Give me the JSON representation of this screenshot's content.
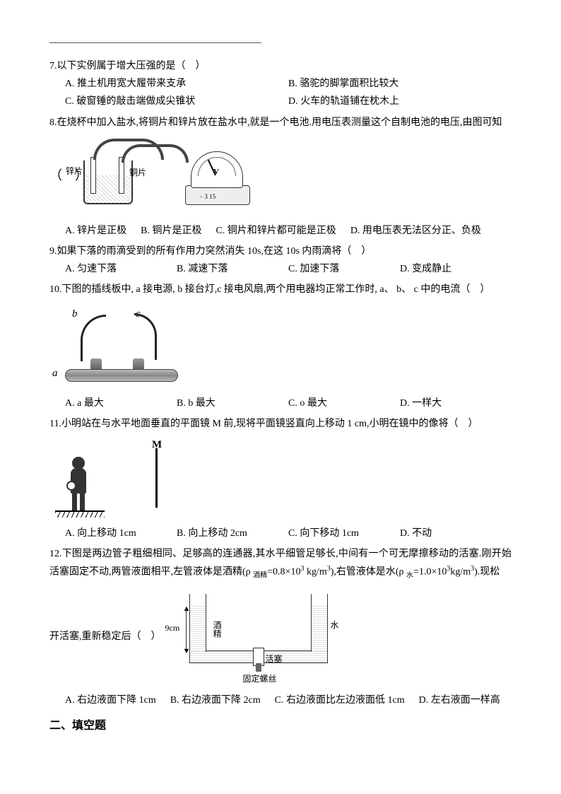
{
  "q7": {
    "text": "7.以下实例属于增大压强的是（　）",
    "optA": "A. 推土机用宽大履带来支承",
    "optB": "B. 骆驼的脚掌面积比较大",
    "optC": "C. 破窗锤的敲击端做成尖锥状",
    "optD": "D. 火车的轨道铺在枕木上"
  },
  "q8": {
    "text": "8.在烧杯中加入盐水,将铜片和锌片放在盐水中,就是一个电池.用电压表测量这个自制电池的电压,由图可知",
    "paren": "（　）",
    "label_zinc": "锌片",
    "label_copper": "铜片",
    "meter_symbol": "V",
    "meter_scale": "− 3 15",
    "optA": "A. 锌片是正极",
    "optB": "B. 铜片是正极",
    "optC": "C. 铜片和锌片都可能是正极",
    "optD": "D. 用电压表无法区分正、负极"
  },
  "q9": {
    "text": "9.如果下落的雨滴受到的所有作用力突然消失 10s,在这 10s 内雨滴将（　）",
    "optA": "A. 匀速下落",
    "optB": "B. 减速下落",
    "optC": "C. 加速下落",
    "optD": "D. 变成静止"
  },
  "q10": {
    "text": "10.下图的插线板中, a 接电源, b 接台灯,c 接电风扇,两个用电器均正常工作时, a、 b、 c 中的电流（　）",
    "label_a": "a",
    "label_b": "b",
    "label_c": "c",
    "optA": "A. a 最大",
    "optB": "B. b 最大",
    "optC": "C. o 最大",
    "optD": "D. 一样大"
  },
  "q11": {
    "text": "11.小明站在与水平地面垂直的平面镜 M 前,现将平面镜竖直向上移动 1 cm,小明在镜中的像将（　）",
    "label_m": "M",
    "optA": "A. 向上移动 1cm",
    "optB": "B. 向上移动 2cm",
    "optC": "C. 向下移动 1cm",
    "optD": "D. 不动"
  },
  "q12": {
    "text_part1": "12.下图是两边管子粗细相同、足够高的连通器,其水平细管足够长,中间有一个可无摩擦移动的活塞.刚开始活塞固定不动,两管液面相平,左管液体是酒精(ρ ",
    "text_sub1": "酒精",
    "text_part2": "=0.8×10",
    "text_sup1": "3",
    "text_part3": " kg/m",
    "text_sup2": "3",
    "text_part4": "),右管液体是水(ρ ",
    "text_sub2": "水",
    "text_part5": "=1.0×10",
    "text_sup3": "3",
    "text_part6": "kg/m",
    "text_sup4": "3",
    "text_part7": ").现松",
    "text_second_line": "开活塞,重新稳定后（　）",
    "label_alcohol": "酒精",
    "label_water": "水",
    "label_piston": "活塞",
    "label_screw": "固定螺丝",
    "dim_9": "9cm",
    "optA": "A. 右边液面下降 1cm",
    "optB": "B. 右边液面下降 2cm",
    "optC": "C. 右边液面比左边液面低 1cm",
    "optD": "D. 左右液面一样高"
  },
  "section2": "二、填空题"
}
